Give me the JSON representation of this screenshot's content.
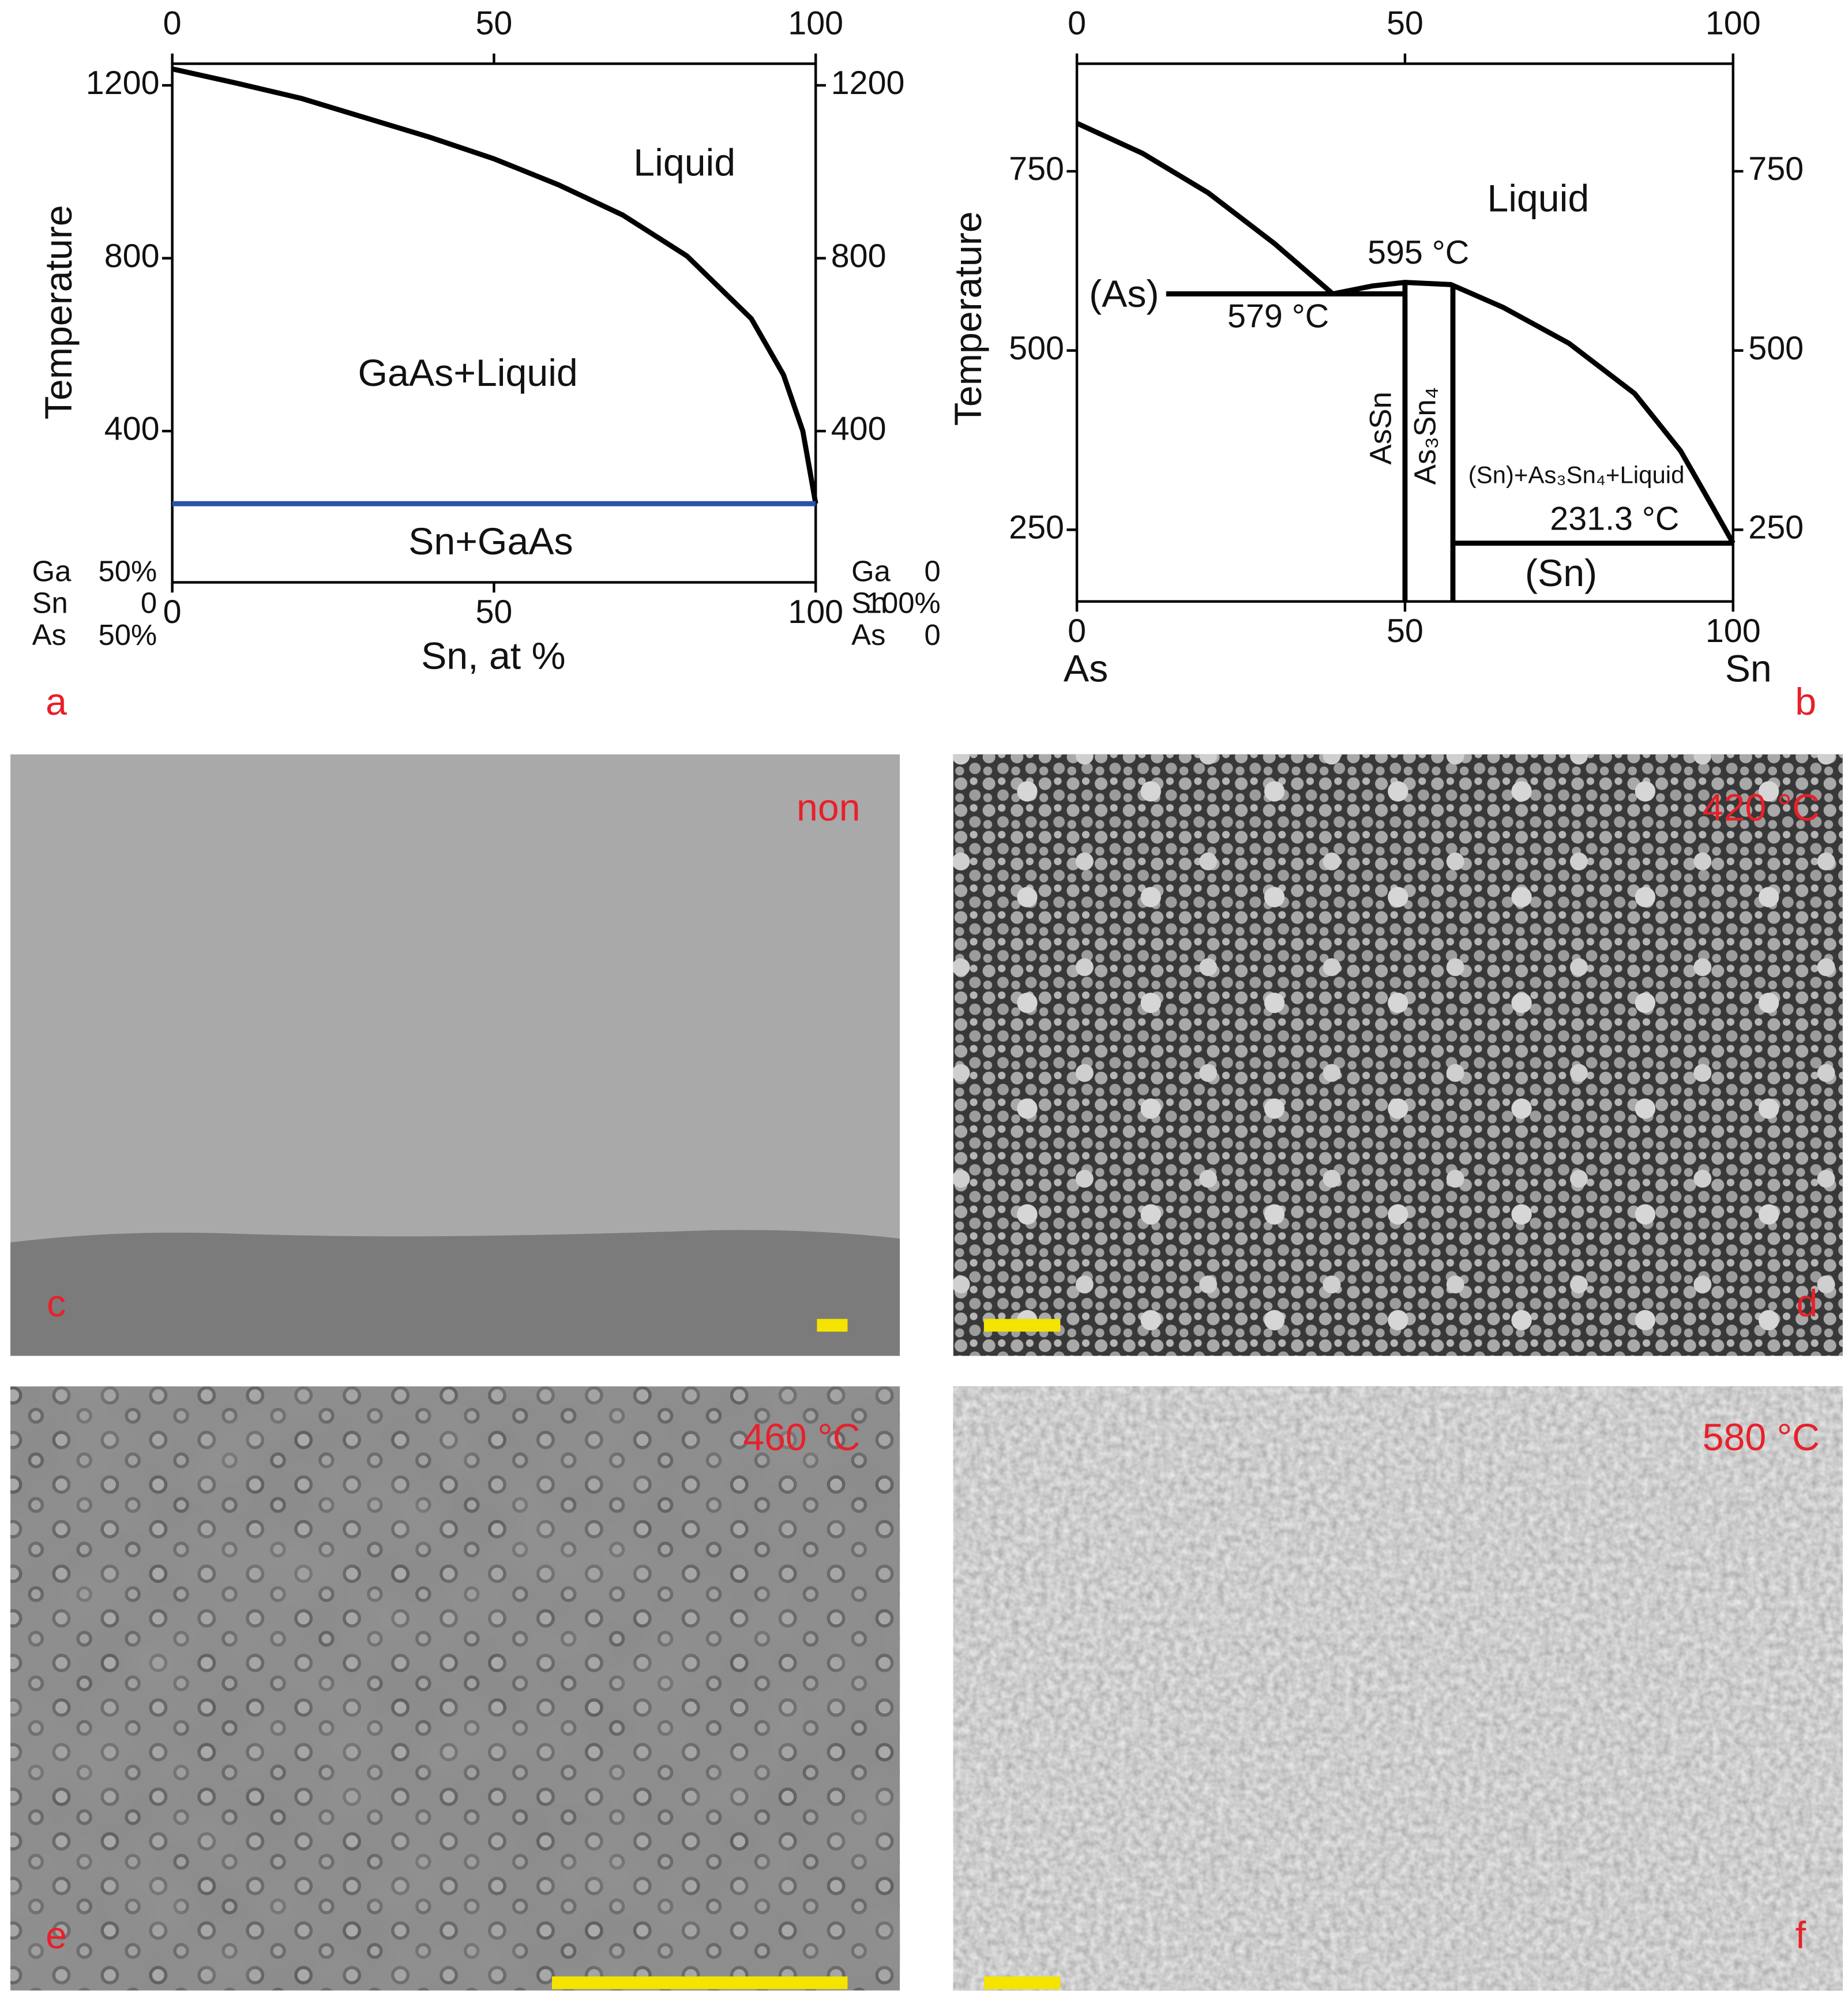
{
  "chart_data": [
    {
      "type": "line",
      "panel": "a",
      "ylabel": "Temperature",
      "xlabel": "Sn, at %",
      "xlim": [
        0,
        100
      ],
      "xticks": [
        0,
        50,
        100
      ],
      "ylim": [
        50,
        1250
      ],
      "yticks": [
        400,
        800,
        1200
      ],
      "series": [
        {
          "color": "#000000",
          "x": [
            0,
            10,
            20,
            30,
            40,
            50,
            60,
            70,
            80,
            90,
            95,
            98,
            100
          ],
          "values": [
            1238,
            1205,
            1170,
            1125,
            1080,
            1030,
            970,
            900,
            805,
            660,
            530,
            400,
            232
          ]
        },
        {
          "color": "#2a52a8",
          "x": [
            0,
            100
          ],
          "values": [
            232,
            232
          ]
        }
      ],
      "annotations": [
        "Liquid",
        "GaAs+Liquid",
        "Sn+GaAs"
      ],
      "composition_left": [
        [
          "Ga",
          "50%"
        ],
        [
          "Sn",
          "0"
        ],
        [
          "As",
          "50%"
        ]
      ],
      "composition_right": [
        [
          "Ga",
          "0"
        ],
        [
          "Sn",
          "100%"
        ],
        [
          "As",
          "0"
        ]
      ]
    },
    {
      "type": "line",
      "panel": "b",
      "ylabel": "Temperature",
      "x_end_labels": [
        "As",
        "Sn"
      ],
      "xlim": [
        0,
        100
      ],
      "xticks": [
        0,
        50,
        100
      ],
      "ylim": [
        150,
        900
      ],
      "yticks": [
        250,
        500,
        750
      ],
      "series": [
        {
          "color": "#000000",
          "x": [
            0,
            10,
            20,
            30,
            39
          ],
          "values": [
            817,
            775,
            720,
            650,
            579
          ]
        },
        {
          "color": "#000000",
          "x": [
            39,
            45,
            50,
            57,
            65,
            75,
            85,
            92,
            97,
            100
          ],
          "values": [
            579,
            590,
            595,
            592,
            560,
            510,
            440,
            360,
            280,
            231.3
          ]
        },
        {
          "color": "#000000",
          "x": [
            13.6,
            50
          ],
          "values": [
            579,
            579
          ]
        },
        {
          "color": "#000000",
          "x": [
            50,
            50
          ],
          "values": [
            150,
            595
          ]
        },
        {
          "color": "#000000",
          "x": [
            57.3,
            57.3
          ],
          "values": [
            150,
            592
          ]
        },
        {
          "color": "#000000",
          "x": [
            57.3,
            100
          ],
          "values": [
            231.3,
            231.3
          ]
        }
      ],
      "annotations": [
        "Liquid",
        "595 °C",
        "(As)",
        "579 °C",
        "AsSn",
        "As₃Sn₄",
        "(Sn)+As₃Sn₄+Liquid",
        "231.3 °C",
        "(Sn)"
      ]
    }
  ],
  "panels": [
    {
      "label": "non",
      "letter": "c"
    },
    {
      "label": "420 °C",
      "letter": "d"
    },
    {
      "label": "460 °C",
      "letter": "e"
    },
    {
      "label": "580 °C",
      "letter": "f"
    }
  ]
}
